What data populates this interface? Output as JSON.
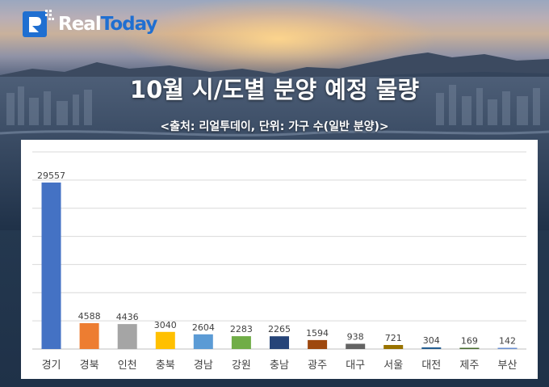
{
  "brand": {
    "name_part1": "Real",
    "name_part2": "Today",
    "accent": "#1f6fd1"
  },
  "chart_data": {
    "type": "bar",
    "title": "10월 시/도별 분양 예정 물량",
    "subtitle": "<출처: 리얼투데이, 단위: 가구 수(일반 분양)>",
    "categories": [
      "경기",
      "경북",
      "인천",
      "충북",
      "경남",
      "강원",
      "충남",
      "광주",
      "대구",
      "서울",
      "대전",
      "제주",
      "부산"
    ],
    "values": [
      29557,
      4588,
      4436,
      3040,
      2604,
      2283,
      2265,
      1594,
      938,
      721,
      304,
      169,
      142
    ],
    "colors": [
      "#4472c4",
      "#ed7d31",
      "#a5a5a5",
      "#ffc000",
      "#5b9bd5",
      "#70ad47",
      "#264478",
      "#9e480e",
      "#636363",
      "#997300",
      "#255e91",
      "#43682b",
      "#698ed0"
    ],
    "ylim": [
      0,
      35000
    ],
    "grid": true,
    "legend": "none"
  }
}
